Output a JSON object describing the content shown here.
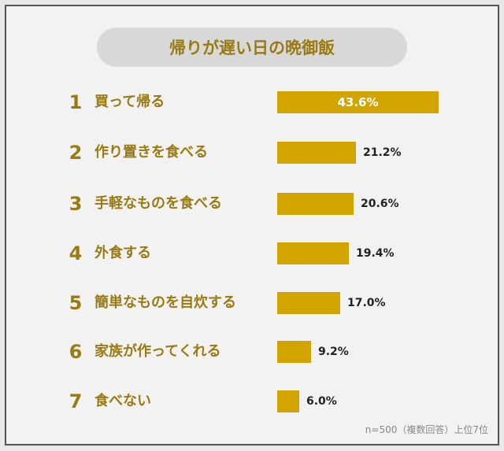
{
  "chart_data": {
    "type": "bar",
    "orientation": "horizontal",
    "title": "帰りが遅い日の晩御飯",
    "categories": [
      "買って帰る",
      "作り置きを食べる",
      "手軽なものを食べる",
      "外食する",
      "簡単なものを自炊する",
      "家族が作ってくれる",
      "食べない"
    ],
    "ranks": [
      "1",
      "2",
      "3",
      "4",
      "5",
      "6",
      "7"
    ],
    "values": [
      43.6,
      21.2,
      20.6,
      19.4,
      17.0,
      9.2,
      6.0
    ],
    "value_labels": [
      "43.6%",
      "21.2%",
      "20.6%",
      "19.4%",
      "17.0%",
      "9.2%",
      "6.0%"
    ],
    "unit": "%",
    "bar_color": "#d2a400",
    "label_color": "#9a7a12",
    "grid": false,
    "note": "n=500（複数回答）上位7位"
  }
}
